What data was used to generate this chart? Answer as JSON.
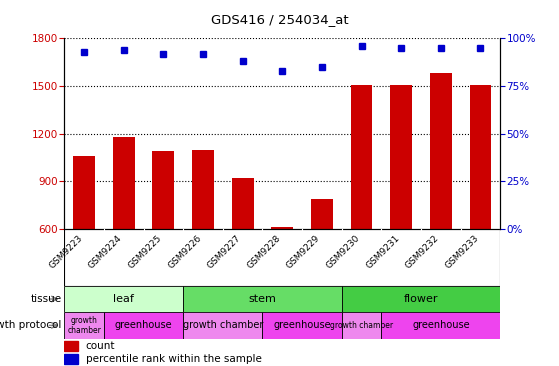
{
  "title": "GDS416 / 254034_at",
  "samples": [
    "GSM9223",
    "GSM9224",
    "GSM9225",
    "GSM9226",
    "GSM9227",
    "GSM9228",
    "GSM9229",
    "GSM9230",
    "GSM9231",
    "GSM9232",
    "GSM9233"
  ],
  "counts": [
    1060,
    1180,
    1090,
    1100,
    920,
    615,
    790,
    1510,
    1510,
    1580,
    1505
  ],
  "percentiles": [
    93,
    94,
    92,
    92,
    88,
    83,
    85,
    96,
    95,
    95,
    95
  ],
  "ylim_left": [
    600,
    1800
  ],
  "ylim_right": [
    0,
    100
  ],
  "yticks_left": [
    600,
    900,
    1200,
    1500,
    1800
  ],
  "yticks_right": [
    0,
    25,
    50,
    75,
    100
  ],
  "bar_color": "#cc0000",
  "dot_color": "#0000cc",
  "tissue_groups": [
    {
      "label": "leaf",
      "start": 0,
      "end": 3,
      "color": "#ccffcc"
    },
    {
      "label": "stem",
      "start": 3,
      "end": 7,
      "color": "#66dd66"
    },
    {
      "label": "flower",
      "start": 7,
      "end": 11,
      "color": "#44cc44"
    }
  ],
  "growth_groups": [
    {
      "label": "growth\nchamber",
      "start": 0,
      "end": 1,
      "color": "#ee88ee"
    },
    {
      "label": "greenhouse",
      "start": 1,
      "end": 3,
      "color": "#ee44ee"
    },
    {
      "label": "growth chamber",
      "start": 3,
      "end": 5,
      "color": "#ee88ee"
    },
    {
      "label": "greenhouse",
      "start": 5,
      "end": 7,
      "color": "#ee44ee"
    },
    {
      "label": "growth chamber",
      "start": 7,
      "end": 8,
      "color": "#ee88ee"
    },
    {
      "label": "greenhouse",
      "start": 8,
      "end": 11,
      "color": "#ee44ee"
    }
  ],
  "xtick_bg_color": "#cccccc",
  "tissue_label": "tissue",
  "growth_label": "growth protocol",
  "legend_count_label": "count",
  "legend_pct_label": "percentile rank within the sample",
  "grid_color": "#000000"
}
